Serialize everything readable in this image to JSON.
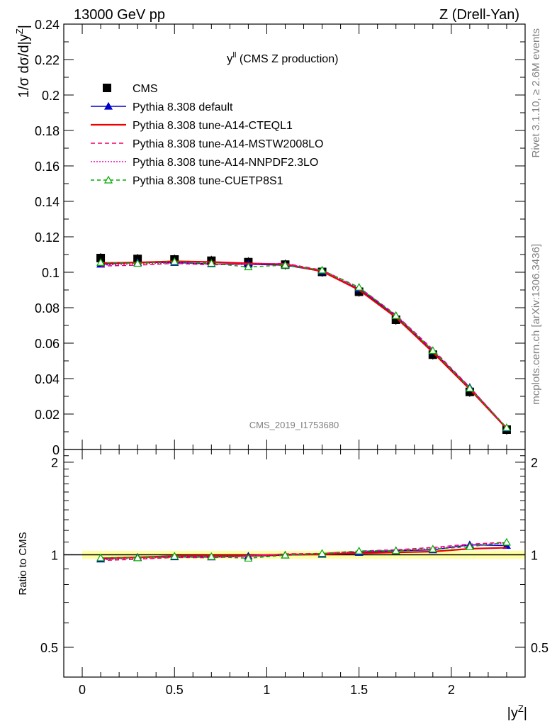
{
  "header": {
    "left": "13000 GeV pp",
    "right": "Z (Drell-Yan)"
  },
  "side_labels": {
    "rivet": "Rivet 3.1.10, ≥ 2.6M events",
    "mcplots": "mcplots.cern.ch [arXiv:1306.3436]"
  },
  "chart_data": {
    "type": "line",
    "title_main": "y",
    "title_sup": "ll",
    "title_rest": " (CMS Z production)",
    "watermark": "CMS_2019_I1753680",
    "xlabel_main": "|y",
    "xlabel_sup": "Z",
    "xlabel_end": "|",
    "ylabel_main": "1/σ dσ/d|y",
    "ylabel_sup": "Z",
    "ylabel_end": "|",
    "ratio_ylabel": "Ratio to CMS",
    "xlim": [
      -0.1,
      2.4
    ],
    "ylim": [
      0,
      0.24
    ],
    "ratio_ylim": [
      0.4,
      2.2
    ],
    "x_ticks": [
      "0",
      "0.5",
      "1",
      "1.5",
      "2"
    ],
    "y_ticks": [
      "0",
      "0.02",
      "0.04",
      "0.06",
      "0.08",
      "0.1",
      "0.12",
      "0.14",
      "0.16",
      "0.18",
      "0.2",
      "0.22",
      "0.24"
    ],
    "ratio_ticks": [
      "0.5",
      "1",
      "2"
    ],
    "x": [
      0.1,
      0.3,
      0.5,
      0.7,
      0.9,
      1.1,
      1.3,
      1.5,
      1.7,
      1.9,
      2.1,
      2.3
    ],
    "data": {
      "name": "CMS",
      "values": [
        0.108,
        0.1075,
        0.1072,
        0.1065,
        0.1057,
        0.1043,
        0.1002,
        0.089,
        0.0732,
        0.0535,
        0.0325,
        0.0112
      ]
    },
    "series": [
      {
        "name": "Pythia 8.308 default",
        "color": "#0000cc",
        "dash": "",
        "marker": "triangle",
        "values": [
          0.1045,
          0.1055,
          0.1055,
          0.1047,
          0.1045,
          0.104,
          0.1005,
          0.0905,
          0.0755,
          0.0555,
          0.035,
          0.012
        ]
      },
      {
        "name": "Pythia 8.308 tune-A14-CTEQL1",
        "color": "#ee0000",
        "dash": "",
        "marker": "none",
        "values": [
          0.1052,
          0.1055,
          0.1062,
          0.1058,
          0.105,
          0.1045,
          0.1005,
          0.09,
          0.0745,
          0.0548,
          0.034,
          0.0118
        ]
      },
      {
        "name": "Pythia 8.308 tune-A14-MSTW2008LO",
        "color": "#ee0066",
        "dash": "6,4",
        "marker": "none",
        "values": [
          0.1035,
          0.104,
          0.105,
          0.1042,
          0.1045,
          0.105,
          0.1012,
          0.0915,
          0.076,
          0.0565,
          0.0352,
          0.0123
        ]
      },
      {
        "name": "Pythia 8.308 tune-A14-NNPDF2.3LO",
        "color": "#ee00bb",
        "dash": "2,2",
        "marker": "none",
        "values": [
          0.104,
          0.1048,
          0.1053,
          0.1045,
          0.1048,
          0.1048,
          0.101,
          0.0912,
          0.0758,
          0.056,
          0.035,
          0.0122
        ]
      },
      {
        "name": "Pythia 8.308 tune-CUETP8S1",
        "color": "#00aa00",
        "dash": "5,4",
        "marker": "open-triangle",
        "values": [
          0.1055,
          0.105,
          0.106,
          0.105,
          0.103,
          0.104,
          0.1012,
          0.0915,
          0.0755,
          0.0558,
          0.0345,
          0.0123
        ]
      }
    ],
    "ratio_series": [
      [
        0.968,
        0.981,
        0.984,
        0.983,
        0.989,
        0.997,
        1.003,
        1.017,
        1.031,
        1.037,
        1.077,
        1.071
      ],
      [
        0.974,
        0.981,
        0.991,
        0.993,
        0.993,
        1.002,
        1.003,
        1.011,
        1.018,
        1.024,
        1.046,
        1.054
      ],
      [
        0.958,
        0.967,
        0.98,
        0.978,
        0.989,
        1.007,
        1.01,
        1.028,
        1.038,
        1.056,
        1.083,
        1.098
      ],
      [
        0.963,
        0.975,
        0.982,
        0.981,
        0.991,
        1.005,
        1.008,
        1.025,
        1.036,
        1.047,
        1.077,
        1.089
      ],
      [
        0.977,
        0.977,
        0.989,
        0.986,
        0.974,
        0.997,
        1.01,
        1.028,
        1.031,
        1.043,
        1.062,
        1.098
      ]
    ]
  }
}
